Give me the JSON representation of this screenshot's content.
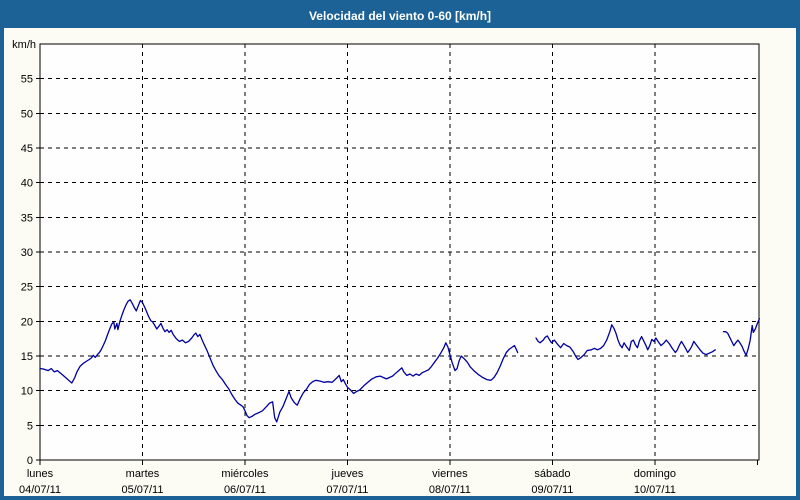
{
  "window": {
    "title": "Velocidad del viento 0-60 [km/h]"
  },
  "colors": {
    "titlebar_bg": "#1d6296",
    "window_border": "#1d6296",
    "content_bg": "#fcfcf5",
    "plot_bg": "#fefefe",
    "grid": "#000000",
    "axis_text": "#000000",
    "title_text": "#ffffff",
    "line": "#0000a0"
  },
  "chart_data": {
    "type": "line",
    "title": "Velocidad del viento 0-60 [km/h]",
    "ylabel": "km/h",
    "ylim": [
      0,
      60
    ],
    "ytick_step": 5,
    "ytick_labels": [
      "0",
      "5",
      "10",
      "15",
      "20",
      "25",
      "30",
      "35",
      "40",
      "45",
      "50",
      "55"
    ],
    "grid": "dashed",
    "legend": "none",
    "x_axis_days": [
      {
        "name": "lunes",
        "date": "04/07/11"
      },
      {
        "name": "martes",
        "date": "05/07/11"
      },
      {
        "name": "miércoles",
        "date": "06/07/11"
      },
      {
        "name": "jueves",
        "date": "07/07/11"
      },
      {
        "name": "viernes",
        "date": "08/07/11"
      },
      {
        "name": "sábado",
        "date": "09/07/11"
      },
      {
        "name": "domingo",
        "date": "10/07/11"
      }
    ],
    "x_unit": "days_from_monday_00h",
    "series": [
      {
        "name": "velocidad_del_viento_kmh",
        "color": "#0000a0",
        "points": [
          [
            0,
            13.2
          ],
          [
            0.04,
            13.1
          ],
          [
            0.08,
            12.9
          ],
          [
            0.11,
            13.2
          ],
          [
            0.14,
            12.7
          ],
          [
            0.17,
            12.9
          ],
          [
            0.21,
            12.4
          ],
          [
            0.25,
            11.9
          ],
          [
            0.28,
            11.5
          ],
          [
            0.31,
            11.1
          ],
          [
            0.34,
            11.9
          ],
          [
            0.36,
            12.7
          ],
          [
            0.39,
            13.5
          ],
          [
            0.42,
            13.9
          ],
          [
            0.45,
            14.2
          ],
          [
            0.48,
            14.5
          ],
          [
            0.5,
            14.7
          ],
          [
            0.52,
            15.1
          ],
          [
            0.54,
            14.8
          ],
          [
            0.56,
            15.2
          ],
          [
            0.58,
            15.5
          ],
          [
            0.6,
            16
          ],
          [
            0.62,
            16.6
          ],
          [
            0.64,
            17.3
          ],
          [
            0.66,
            18.1
          ],
          [
            0.68,
            18.9
          ],
          [
            0.7,
            19.6
          ],
          [
            0.72,
            19.9
          ],
          [
            0.73,
            18.9
          ],
          [
            0.75,
            19.7
          ],
          [
            0.76,
            18.8
          ],
          [
            0.78,
            20
          ],
          [
            0.8,
            20.9
          ],
          [
            0.82,
            21.7
          ],
          [
            0.84,
            22.4
          ],
          [
            0.86,
            22.9
          ],
          [
            0.88,
            23.1
          ],
          [
            0.9,
            22.6
          ],
          [
            0.92,
            22
          ],
          [
            0.94,
            21.5
          ],
          [
            0.96,
            22.3
          ],
          [
            0.98,
            23
          ],
          [
            1,
            22.7
          ],
          [
            1.02,
            22.1
          ],
          [
            1.04,
            21.4
          ],
          [
            1.06,
            20.7
          ],
          [
            1.08,
            20.1
          ],
          [
            1.1,
            19.9
          ],
          [
            1.12,
            19.4
          ],
          [
            1.14,
            18.9
          ],
          [
            1.16,
            19.3
          ],
          [
            1.18,
            19.7
          ],
          [
            1.2,
            19
          ],
          [
            1.22,
            18.5
          ],
          [
            1.24,
            18.8
          ],
          [
            1.26,
            18.4
          ],
          [
            1.28,
            18.7
          ],
          [
            1.3,
            18.1
          ],
          [
            1.33,
            17.5
          ],
          [
            1.36,
            17.1
          ],
          [
            1.39,
            17.3
          ],
          [
            1.42,
            16.9
          ],
          [
            1.45,
            17.1
          ],
          [
            1.48,
            17.6
          ],
          [
            1.5,
            18
          ],
          [
            1.52,
            18.3
          ],
          [
            1.54,
            17.8
          ],
          [
            1.56,
            18.1
          ],
          [
            1.58,
            17.4
          ],
          [
            1.6,
            16.7
          ],
          [
            1.63,
            15.8
          ],
          [
            1.66,
            14.7
          ],
          [
            1.69,
            13.6
          ],
          [
            1.72,
            12.8
          ],
          [
            1.75,
            12.1
          ],
          [
            1.78,
            11.6
          ],
          [
            1.81,
            10.9
          ],
          [
            1.84,
            10.3
          ],
          [
            1.87,
            9.5
          ],
          [
            1.9,
            8.8
          ],
          [
            1.93,
            8.2
          ],
          [
            1.96,
            7.9
          ],
          [
            1.98,
            7.7
          ],
          [
            2,
            7.1
          ],
          [
            2.02,
            6.4
          ],
          [
            2.04,
            6.1
          ],
          [
            2.07,
            6.3
          ],
          [
            2.1,
            6.6
          ],
          [
            2.13,
            6.8
          ],
          [
            2.17,
            7.1
          ],
          [
            2.21,
            7.7
          ],
          [
            2.24,
            8.2
          ],
          [
            2.27,
            8.4
          ],
          [
            2.29,
            6.1
          ],
          [
            2.31,
            5.5
          ],
          [
            2.34,
            6.9
          ],
          [
            2.37,
            7.7
          ],
          [
            2.4,
            8.8
          ],
          [
            2.43,
            9.9
          ],
          [
            2.45,
            9
          ],
          [
            2.48,
            8.3
          ],
          [
            2.51,
            7.9
          ],
          [
            2.54,
            8.9
          ],
          [
            2.57,
            9.7
          ],
          [
            2.6,
            10.2
          ],
          [
            2.63,
            10.9
          ],
          [
            2.66,
            11.3
          ],
          [
            2.69,
            11.5
          ],
          [
            2.73,
            11.4
          ],
          [
            2.77,
            11.2
          ],
          [
            2.81,
            11.3
          ],
          [
            2.85,
            11.2
          ],
          [
            2.88,
            11.6
          ],
          [
            2.9,
            11.9
          ],
          [
            2.92,
            12.2
          ],
          [
            2.94,
            11.3
          ],
          [
            2.96,
            11.6
          ],
          [
            2.98,
            11
          ],
          [
            3,
            10.5
          ],
          [
            3.03,
            10.1
          ],
          [
            3.06,
            9.6
          ],
          [
            3.09,
            9.9
          ],
          [
            3.12,
            10.1
          ],
          [
            3.16,
            10.7
          ],
          [
            3.2,
            11.2
          ],
          [
            3.24,
            11.7
          ],
          [
            3.28,
            12
          ],
          [
            3.32,
            12.1
          ],
          [
            3.35,
            11.9
          ],
          [
            3.38,
            11.7
          ],
          [
            3.41,
            11.9
          ],
          [
            3.44,
            12.1
          ],
          [
            3.47,
            12.5
          ],
          [
            3.5,
            12.9
          ],
          [
            3.53,
            13.3
          ],
          [
            3.55,
            12.7
          ],
          [
            3.58,
            12.2
          ],
          [
            3.61,
            12.4
          ],
          [
            3.64,
            12.1
          ],
          [
            3.67,
            12.4
          ],
          [
            3.7,
            12.2
          ],
          [
            3.73,
            12.6
          ],
          [
            3.76,
            12.8
          ],
          [
            3.79,
            13
          ],
          [
            3.82,
            13.5
          ],
          [
            3.85,
            14.1
          ],
          [
            3.88,
            14.7
          ],
          [
            3.91,
            15.4
          ],
          [
            3.94,
            16.2
          ],
          [
            3.96,
            16.9
          ],
          [
            3.98,
            16.3
          ],
          [
            4,
            15.2
          ],
          [
            4.02,
            14.1
          ],
          [
            4.05,
            12.9
          ],
          [
            4.07,
            13.2
          ],
          [
            4.09,
            14.3
          ],
          [
            4.11,
            15
          ],
          [
            4.14,
            14.6
          ],
          [
            4.17,
            14.1
          ],
          [
            4.2,
            13.4
          ],
          [
            4.24,
            12.8
          ],
          [
            4.28,
            12.3
          ],
          [
            4.32,
            11.9
          ],
          [
            4.36,
            11.6
          ],
          [
            4.4,
            11.5
          ],
          [
            4.43,
            11.9
          ],
          [
            4.46,
            12.6
          ],
          [
            4.49,
            13.5
          ],
          [
            4.52,
            14.6
          ],
          [
            4.55,
            15.5
          ],
          [
            4.58,
            16
          ],
          [
            4.61,
            16.3
          ],
          [
            4.63,
            16.5
          ],
          [
            4.65,
            15.9
          ],
          [
            4.66,
            15.5
          ],
          null,
          [
            4.84,
            17.6
          ],
          [
            4.86,
            17.1
          ],
          [
            4.88,
            16.9
          ],
          [
            4.91,
            17.3
          ],
          [
            4.93,
            17.7
          ],
          [
            4.95,
            17.9
          ],
          [
            4.97,
            17.4
          ],
          [
            4.99,
            16.9
          ],
          [
            5.02,
            17.3
          ],
          [
            5.05,
            16.7
          ],
          [
            5.08,
            16.2
          ],
          [
            5.11,
            16.8
          ],
          [
            5.14,
            16.5
          ],
          [
            5.17,
            16.3
          ],
          [
            5.2,
            15.7
          ],
          [
            5.23,
            14.9
          ],
          [
            5.25,
            14.5
          ],
          [
            5.28,
            14.8
          ],
          [
            5.31,
            15.2
          ],
          [
            5.34,
            15.8
          ],
          [
            5.38,
            15.9
          ],
          [
            5.41,
            16.1
          ],
          [
            5.44,
            15.9
          ],
          [
            5.47,
            16.1
          ],
          [
            5.5,
            16.5
          ],
          [
            5.53,
            17.3
          ],
          [
            5.56,
            18.5
          ],
          [
            5.58,
            19.5
          ],
          [
            5.6,
            19
          ],
          [
            5.62,
            18.3
          ],
          [
            5.64,
            17.3
          ],
          [
            5.66,
            16.6
          ],
          [
            5.68,
            16.2
          ],
          [
            5.7,
            16.9
          ],
          [
            5.72,
            16.4
          ],
          [
            5.75,
            15.8
          ],
          [
            5.77,
            17.1
          ],
          [
            5.79,
            17.3
          ],
          [
            5.81,
            16.6
          ],
          [
            5.83,
            16.2
          ],
          [
            5.85,
            17.2
          ],
          [
            5.87,
            17.8
          ],
          [
            5.89,
            17.2
          ],
          [
            5.91,
            16.6
          ],
          [
            5.93,
            15.9
          ],
          [
            5.95,
            16.5
          ],
          [
            5.97,
            17.4
          ],
          [
            5.99,
            17.1
          ],
          [
            6.01,
            17.6
          ],
          [
            6.03,
            17.1
          ],
          [
            6.06,
            16.5
          ],
          [
            6.09,
            16.9
          ],
          [
            6.11,
            17.3
          ],
          [
            6.14,
            16.8
          ],
          [
            6.17,
            16.1
          ],
          [
            6.2,
            15.5
          ],
          [
            6.22,
            15.9
          ],
          [
            6.24,
            16.6
          ],
          [
            6.26,
            17.1
          ],
          [
            6.28,
            16.6
          ],
          [
            6.3,
            16.1
          ],
          [
            6.32,
            15.5
          ],
          [
            6.34,
            15.9
          ],
          [
            6.36,
            16.4
          ],
          [
            6.38,
            17.1
          ],
          [
            6.41,
            16.5
          ],
          [
            6.44,
            15.9
          ],
          [
            6.47,
            15.4
          ],
          [
            6.5,
            15.2
          ],
          [
            6.53,
            15.4
          ],
          [
            6.56,
            15.6
          ],
          [
            6.59,
            15.9
          ],
          null,
          [
            6.67,
            18.5
          ],
          [
            6.69,
            18.5
          ],
          [
            6.71,
            18.3
          ],
          [
            6.73,
            17.7
          ],
          [
            6.75,
            17.1
          ],
          [
            6.77,
            16.5
          ],
          [
            6.79,
            16.9
          ],
          [
            6.81,
            17.3
          ],
          [
            6.83,
            16.9
          ],
          [
            6.85,
            16.4
          ],
          [
            6.87,
            15.7
          ],
          [
            6.89,
            15.1
          ],
          [
            6.91,
            16
          ],
          [
            6.93,
            17.3
          ],
          [
            6.95,
            19.4
          ],
          [
            6.96,
            18.4
          ],
          [
            6.98,
            18.9
          ],
          [
            7,
            19.7
          ],
          [
            7.02,
            20.4
          ]
        ]
      }
    ]
  }
}
